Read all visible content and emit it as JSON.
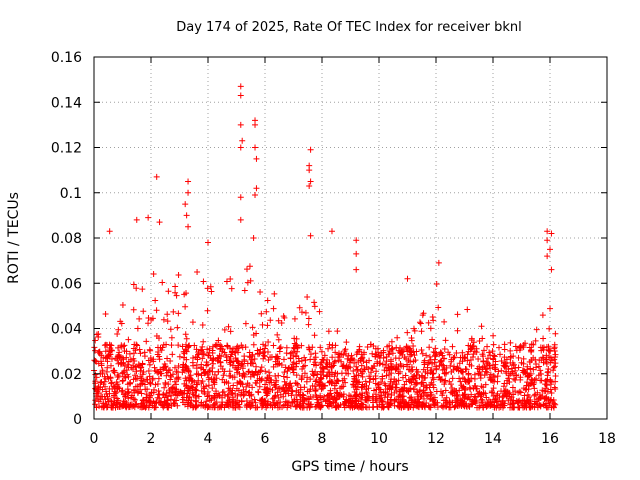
{
  "chart_data": {
    "type": "scatter",
    "title": "Day 174 of 2025, Rate Of TEC Index for receiver bknl",
    "xlabel": "GPS time / hours",
    "ylabel": "ROTI / TECUs",
    "xlim": [
      0,
      18
    ],
    "ylim": [
      0,
      0.16
    ],
    "x_ticks": [
      0,
      2,
      4,
      6,
      8,
      10,
      12,
      14,
      16,
      18
    ],
    "y_ticks": [
      0,
      0.02,
      0.04,
      0.06,
      0.08,
      0.1,
      0.12,
      0.14,
      0.16
    ],
    "x_tick_labels": [
      "0",
      "2",
      "4",
      "6",
      "8",
      "10",
      "12",
      "14",
      "16",
      "18"
    ],
    "y_tick_labels": [
      "0",
      "0.02",
      "0.04",
      "0.06",
      "0.08",
      "0.1",
      "0.12",
      "0.14",
      "0.16"
    ],
    "grid": true,
    "marker": "plus",
    "marker_color": "#ff0000",
    "x_data_range": [
      0,
      16.2
    ],
    "typical_band": [
      0.005,
      0.04
    ],
    "outliers": [
      {
        "x": 0.55,
        "y": 0.083
      },
      {
        "x": 1.5,
        "y": 0.088
      },
      {
        "x": 1.9,
        "y": 0.089
      },
      {
        "x": 2.2,
        "y": 0.107
      },
      {
        "x": 2.3,
        "y": 0.087
      },
      {
        "x": 3.3,
        "y": 0.105
      },
      {
        "x": 3.3,
        "y": 0.1
      },
      {
        "x": 3.2,
        "y": 0.095
      },
      {
        "x": 3.25,
        "y": 0.09
      },
      {
        "x": 3.3,
        "y": 0.085
      },
      {
        "x": 4.0,
        "y": 0.078
      },
      {
        "x": 5.15,
        "y": 0.147
      },
      {
        "x": 5.15,
        "y": 0.143
      },
      {
        "x": 5.15,
        "y": 0.13
      },
      {
        "x": 5.2,
        "y": 0.123
      },
      {
        "x": 5.15,
        "y": 0.12
      },
      {
        "x": 5.15,
        "y": 0.098
      },
      {
        "x": 5.15,
        "y": 0.088
      },
      {
        "x": 5.65,
        "y": 0.132
      },
      {
        "x": 5.65,
        "y": 0.13
      },
      {
        "x": 5.65,
        "y": 0.12
      },
      {
        "x": 5.7,
        "y": 0.115
      },
      {
        "x": 5.7,
        "y": 0.102
      },
      {
        "x": 5.65,
        "y": 0.099
      },
      {
        "x": 5.6,
        "y": 0.08
      },
      {
        "x": 7.6,
        "y": 0.119
      },
      {
        "x": 7.55,
        "y": 0.112
      },
      {
        "x": 7.55,
        "y": 0.11
      },
      {
        "x": 7.6,
        "y": 0.105
      },
      {
        "x": 7.55,
        "y": 0.103
      },
      {
        "x": 7.6,
        "y": 0.081
      },
      {
        "x": 8.35,
        "y": 0.083
      },
      {
        "x": 9.2,
        "y": 0.079
      },
      {
        "x": 9.2,
        "y": 0.073
      },
      {
        "x": 9.2,
        "y": 0.066
      },
      {
        "x": 11.0,
        "y": 0.062
      },
      {
        "x": 12.1,
        "y": 0.069
      },
      {
        "x": 15.9,
        "y": 0.083
      },
      {
        "x": 16.05,
        "y": 0.082
      },
      {
        "x": 15.9,
        "y": 0.079
      },
      {
        "x": 16.0,
        "y": 0.075
      },
      {
        "x": 15.9,
        "y": 0.072
      },
      {
        "x": 16.05,
        "y": 0.066
      }
    ]
  }
}
